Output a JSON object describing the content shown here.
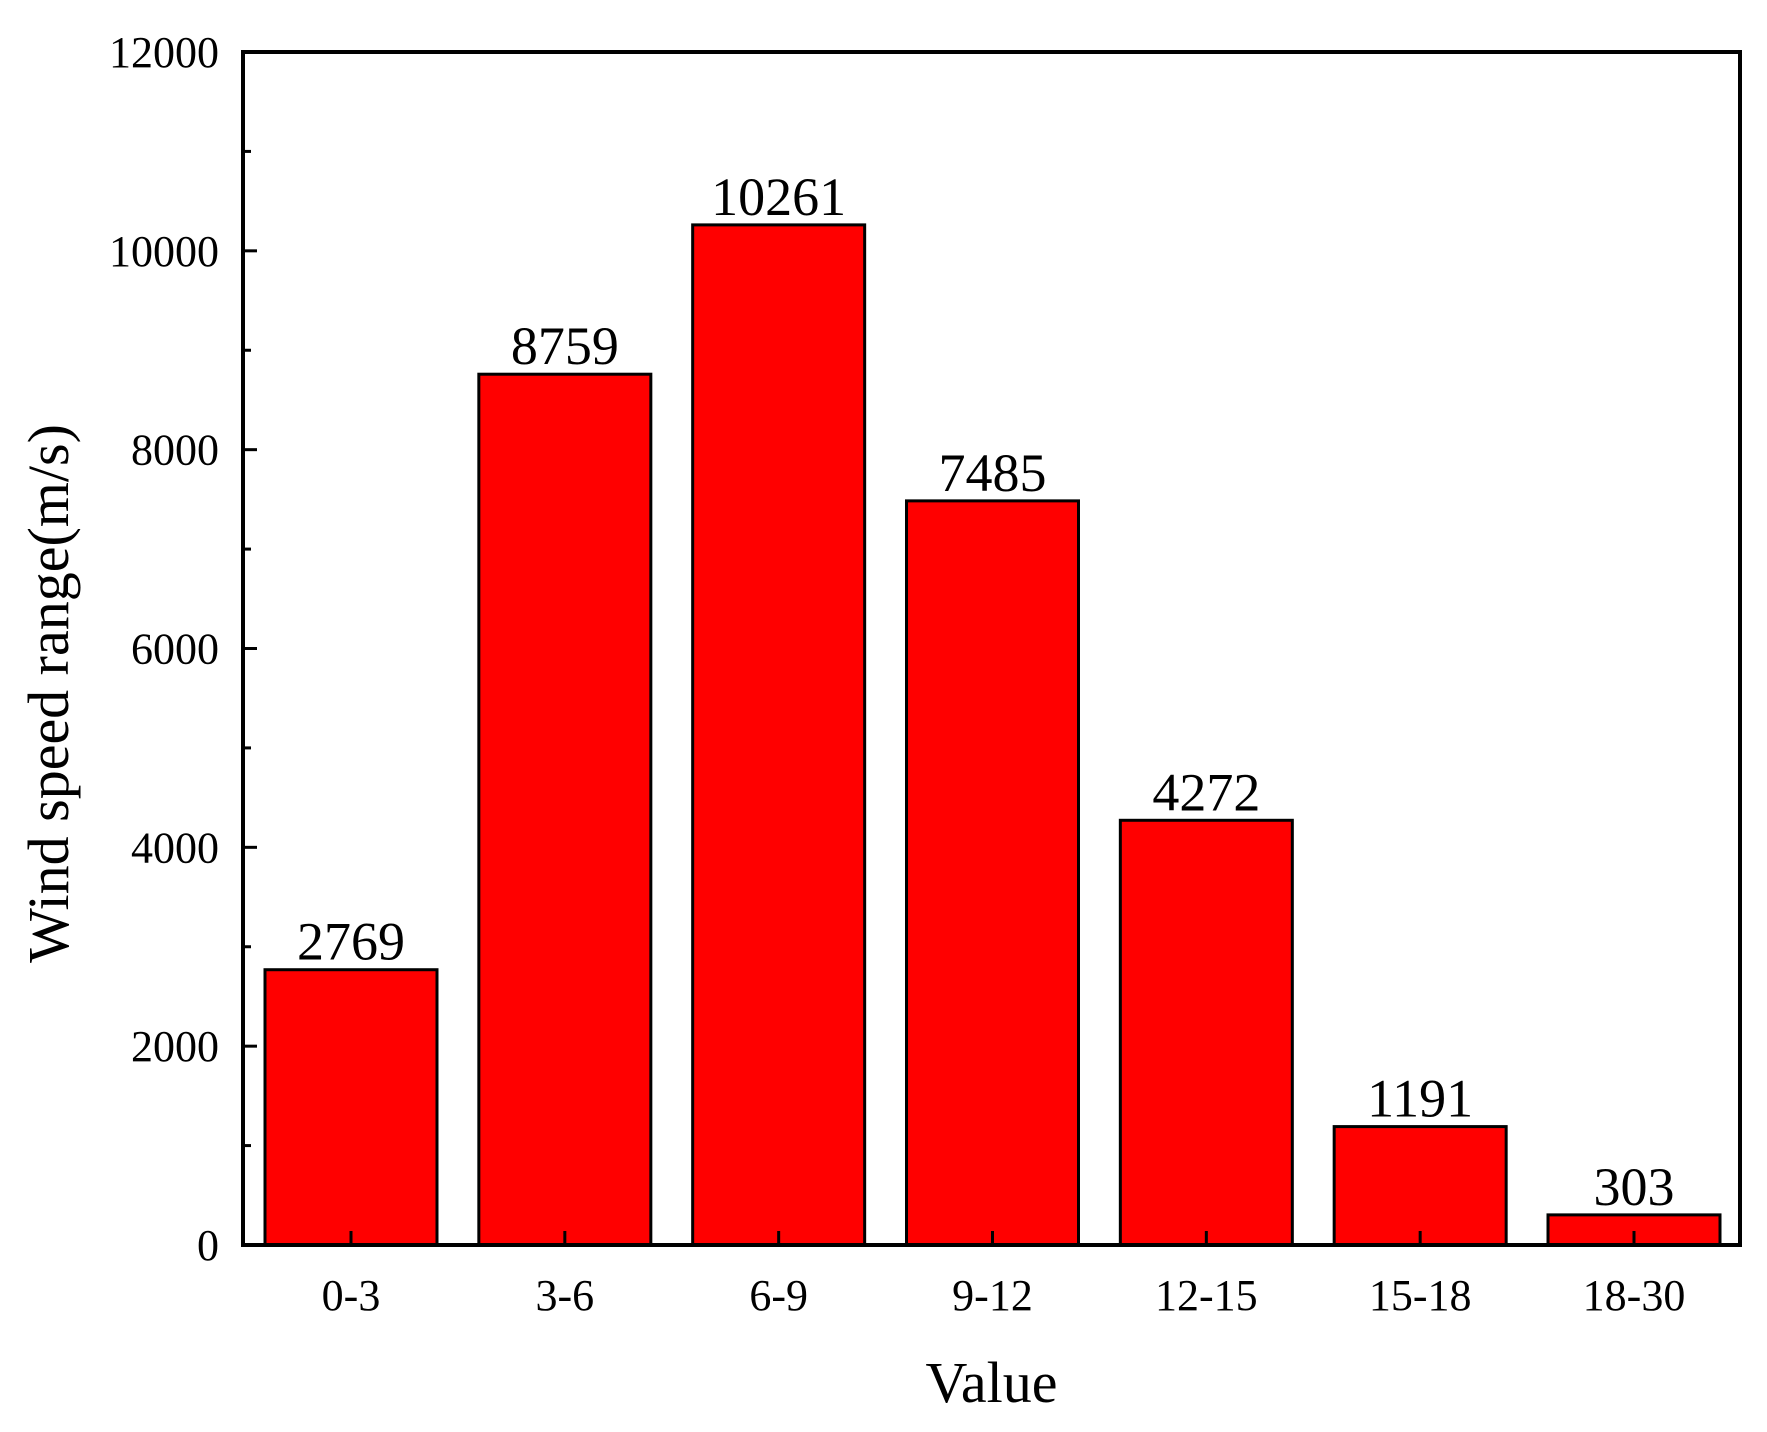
{
  "chart_data": {
    "type": "bar",
    "title": "",
    "xlabel": "Value",
    "ylabel": "Wind speed range(m/s)",
    "categories": [
      "0-3",
      "3-6",
      "6-9",
      "9-12",
      "12-15",
      "15-18",
      "18-30"
    ],
    "values": [
      2769,
      8759,
      10261,
      7485,
      4272,
      1191,
      303
    ],
    "data_labels": [
      "2769",
      "8759",
      "10261",
      "7485",
      "4272",
      "1191",
      "303"
    ],
    "ylim": [
      0,
      12000
    ],
    "yticks": [
      0,
      2000,
      4000,
      6000,
      8000,
      10000,
      12000
    ],
    "ytick_labels": [
      "0",
      "2000",
      "4000",
      "6000",
      "8000",
      "10000",
      "12000"
    ],
    "minor_ytick_step": 1000,
    "grid": false,
    "legend": "none",
    "bar_color": "#ff0000",
    "edge_color": "#000000"
  }
}
